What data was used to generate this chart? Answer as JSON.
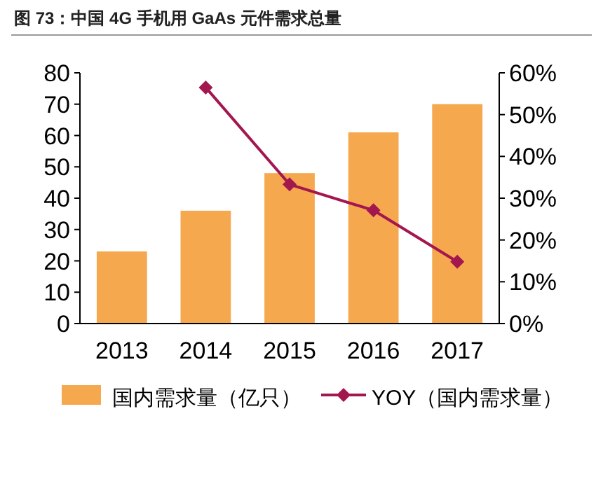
{
  "chart_data": {
    "type": "bar",
    "title": "图 73：中国 4G 手机用 GaAs 元件需求总量",
    "categories": [
      "2013",
      "2014",
      "2015",
      "2016",
      "2017"
    ],
    "series": [
      {
        "name": "国内需求量（亿只）",
        "color": "#f5a84e",
        "values": [
          23,
          36,
          48,
          61,
          70
        ]
      },
      {
        "name": "YOY（国内需求量）",
        "type": "line",
        "axis": "y2",
        "color": "#a3174f",
        "marker": "diamond",
        "values": [
          null,
          56.5,
          33.3,
          27.1,
          14.8
        ]
      }
    ],
    "ylim": [
      0,
      80
    ],
    "yticks": [
      0,
      10,
      20,
      30,
      40,
      50,
      60,
      70,
      80
    ],
    "y2lim": [
      0,
      60
    ],
    "y2ticks": [
      {
        "value": 0,
        "label": "0%"
      },
      {
        "value": 10,
        "label": "10%"
      },
      {
        "value": 20,
        "label": "20%"
      },
      {
        "value": 30,
        "label": "30%"
      },
      {
        "value": 40,
        "label": "40%"
      },
      {
        "value": 50,
        "label": "50%"
      },
      {
        "value": 60,
        "label": "60%"
      }
    ],
    "grid": false,
    "legend": "bottom"
  }
}
